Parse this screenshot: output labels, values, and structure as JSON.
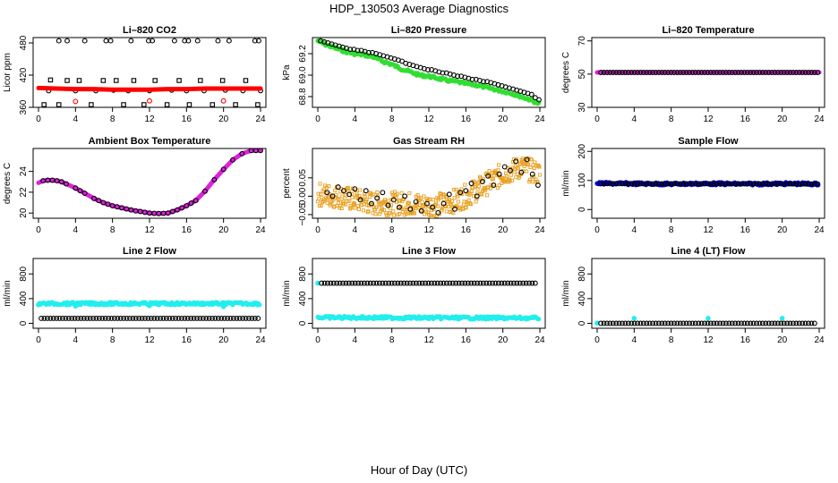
{
  "figure": {
    "title": "HDP_130503  Average Diagnostics",
    "xlabel": "Hour of Day (UTC)"
  },
  "chart_data": [
    {
      "type": "scatter",
      "title": "Li–820 CO2",
      "ylabel": "Licor ppm",
      "xlim": [
        0,
        24
      ],
      "ylim": [
        360,
        490
      ],
      "xticks": [
        "0",
        "4",
        "8",
        "12",
        "16",
        "20",
        "24"
      ],
      "yticks": [
        {
          "v": 360,
          "t": "360"
        },
        {
          "v": 420,
          "t": "420"
        },
        {
          "v": 480,
          "t": "480"
        }
      ],
      "series": [
        {
          "kind": "points-open-square",
          "color": "#000000",
          "x": [
            0.6,
            1.3,
            2.2,
            3.1,
            4.4,
            5.7,
            7.0,
            8.4,
            9.2,
            10.3,
            11.4,
            12.6,
            13.9,
            15.2,
            16.3,
            17.5,
            18.8,
            19.9,
            21.3,
            22.4,
            23.7
          ],
          "y": [
            365,
            411,
            365,
            410,
            410,
            365,
            410,
            410,
            365,
            410,
            365,
            410,
            365,
            410,
            365,
            410,
            365,
            410,
            365,
            410,
            365
          ]
        },
        {
          "kind": "points-open-circle",
          "color": "#000000",
          "x": [
            2.2,
            3.1,
            5.0,
            7.3,
            7.8,
            10.0,
            11.9,
            12.3,
            14.7,
            15.8,
            16.2,
            17.2,
            19.4,
            20.6,
            23.4,
            23.8
          ],
          "y": [
            484,
            484,
            484,
            484,
            484,
            484,
            484,
            484,
            484,
            484,
            484,
            484,
            484,
            484,
            484,
            484
          ]
        },
        {
          "kind": "points-open-circle",
          "color": "#000000",
          "x": [
            1.1,
            4.0,
            6.2,
            8.1,
            9.7,
            12.0,
            14.4,
            16.0,
            17.9,
            20.2,
            22.1,
            24.0
          ],
          "y": [
            391,
            391,
            391,
            392,
            391,
            391,
            392,
            391,
            391,
            392,
            391,
            391
          ]
        },
        {
          "kind": "line-thick",
          "color": "#ff0000",
          "x": [
            0,
            2,
            4,
            6,
            8,
            10,
            12,
            14,
            16,
            18,
            20,
            22,
            24
          ],
          "y": [
            396,
            395,
            394,
            394,
            393,
            393,
            393,
            394,
            394,
            395,
            395,
            395,
            395
          ]
        },
        {
          "kind": "points-open-circle",
          "color": "#ff0000",
          "x": [
            4.0,
            12.0,
            20.0
          ],
          "y": [
            371,
            372,
            372
          ]
        }
      ]
    },
    {
      "type": "scatter",
      "title": "Li–820 Pressure",
      "ylabel": "kPa",
      "xlim": [
        0,
        24
      ],
      "ylim": [
        68.7,
        69.35
      ],
      "xticks": [
        "0",
        "4",
        "8",
        "12",
        "16",
        "20",
        "24"
      ],
      "yticks": [
        {
          "v": 68.8,
          "t": "68.8"
        },
        {
          "v": 69.0,
          "t": "69.0"
        },
        {
          "v": 69.2,
          "t": "69.2"
        }
      ],
      "series": [
        {
          "kind": "band",
          "color": "#33dd33",
          "x": [
            0,
            1,
            2,
            3,
            4,
            5,
            6,
            7,
            8,
            9,
            10,
            11,
            12,
            13,
            14,
            15,
            16,
            17,
            18,
            19,
            20,
            21,
            22,
            23,
            24
          ],
          "y": [
            69.32,
            69.28,
            69.25,
            69.22,
            69.2,
            69.19,
            69.17,
            69.13,
            69.1,
            69.06,
            69.03,
            69.0,
            68.99,
            68.97,
            68.95,
            68.94,
            68.92,
            68.91,
            68.89,
            68.87,
            68.85,
            68.83,
            68.8,
            68.77,
            68.73
          ]
        },
        {
          "kind": "points-open-circle",
          "color": "#000000",
          "x": [
            0.3,
            0.7,
            1.1,
            1.5,
            1.9,
            2.3,
            2.7,
            3.1,
            3.5,
            3.9,
            4.3,
            4.7,
            5.1,
            5.5,
            5.9,
            6.3,
            6.7,
            7.1,
            7.5,
            7.9,
            8.3,
            8.7,
            9.1,
            9.5,
            9.9,
            10.3,
            10.7,
            11.1,
            11.5,
            11.9,
            12.3,
            12.7,
            13.1,
            13.5,
            13.9,
            14.3,
            14.7,
            15.1,
            15.5,
            15.9,
            16.3,
            16.7,
            17.1,
            17.5,
            17.9,
            18.3,
            18.7,
            19.1,
            19.5,
            19.9,
            20.3,
            20.7,
            21.1,
            21.5,
            21.9,
            22.3,
            22.7,
            23.1,
            23.5,
            23.9
          ],
          "y": [
            69.32,
            69.31,
            69.3,
            69.29,
            69.28,
            69.27,
            69.26,
            69.25,
            69.24,
            69.24,
            69.23,
            69.23,
            69.22,
            69.21,
            69.21,
            69.2,
            69.19,
            69.18,
            69.17,
            69.16,
            69.15,
            69.14,
            69.13,
            69.11,
            69.1,
            69.09,
            69.08,
            69.07,
            69.06,
            69.05,
            69.05,
            69.04,
            69.03,
            69.02,
            69.02,
            69.01,
            69.0,
            68.99,
            68.99,
            68.98,
            68.97,
            68.96,
            68.96,
            68.95,
            68.94,
            68.94,
            68.93,
            68.92,
            68.91,
            68.9,
            68.89,
            68.88,
            68.87,
            68.86,
            68.85,
            68.84,
            68.83,
            68.82,
            68.79,
            68.77
          ]
        }
      ]
    },
    {
      "type": "scatter",
      "title": "Li–820 Temperature",
      "ylabel": "degrees C",
      "xlim": [
        0,
        24
      ],
      "ylim": [
        30,
        72
      ],
      "xticks": [
        "0",
        "4",
        "8",
        "12",
        "16",
        "20",
        "24"
      ],
      "yticks": [
        {
          "v": 30,
          "t": "30"
        },
        {
          "v": 50,
          "t": "50"
        },
        {
          "v": 70,
          "t": "70"
        }
      ],
      "series": [
        {
          "kind": "line-thick",
          "color": "#dd22dd",
          "x": [
            0,
            24
          ],
          "y": [
            51,
            51
          ]
        },
        {
          "kind": "points-open-circle-dense",
          "color": "#000000",
          "x": [
            0.4,
            24
          ],
          "y": [
            51,
            51
          ]
        }
      ]
    },
    {
      "type": "line",
      "title": "Ambient Box Temperature",
      "ylabel": "degrees C",
      "xlim": [
        0,
        24
      ],
      "ylim": [
        19.5,
        26.2
      ],
      "xticks": [
        "0",
        "4",
        "8",
        "12",
        "16",
        "20",
        "24"
      ],
      "yticks": [
        {
          "v": 20,
          "t": "20"
        },
        {
          "v": 22,
          "t": "22"
        },
        {
          "v": 24,
          "t": "24"
        }
      ],
      "series": [
        {
          "kind": "line-thick",
          "color": "#dd22dd",
          "x": [
            0,
            0.5,
            1,
            1.5,
            2,
            2.5,
            3,
            3.5,
            4,
            5,
            6,
            7,
            8,
            9,
            10,
            11,
            12,
            13,
            14,
            15,
            16,
            17,
            18,
            19,
            20,
            21,
            22,
            23,
            24
          ],
          "y": [
            22.9,
            23.1,
            23.15,
            23.15,
            23.1,
            23.0,
            22.8,
            22.6,
            22.4,
            21.9,
            21.4,
            21.0,
            20.7,
            20.5,
            20.3,
            20.15,
            20.0,
            19.95,
            20.0,
            20.3,
            20.7,
            21.2,
            22.1,
            23.2,
            24.2,
            25.1,
            25.7,
            26.0,
            26.0
          ]
        },
        {
          "kind": "points-open-circle",
          "color": "#000000",
          "x": [
            0.5,
            1,
            1.5,
            2,
            2.5,
            3,
            4,
            4.5,
            5,
            6,
            6.5,
            7,
            7.5,
            8,
            8.5,
            9,
            9.5,
            10,
            10.5,
            11,
            11.5,
            12,
            12.5,
            13,
            13.5,
            14,
            14.5,
            15,
            15.5,
            16,
            16.5,
            17,
            18,
            19,
            20,
            21,
            22,
            23,
            23.5,
            24
          ],
          "y": [
            23.1,
            23.15,
            23.15,
            23.1,
            23.0,
            22.8,
            22.4,
            22.15,
            21.9,
            21.4,
            21.2,
            21.0,
            20.85,
            20.7,
            20.6,
            20.5,
            20.4,
            20.3,
            20.2,
            20.15,
            20.07,
            20.0,
            19.97,
            19.95,
            19.97,
            20.0,
            20.15,
            20.3,
            20.5,
            20.7,
            20.95,
            21.2,
            22.1,
            23.2,
            24.2,
            25.1,
            25.7,
            26.0,
            26.0,
            26.0
          ]
        }
      ]
    },
    {
      "type": "scatter",
      "title": "Gas Stream RH",
      "ylabel": "percent",
      "xlim": [
        0,
        24
      ],
      "ylim": [
        -0.06,
        0.13
      ],
      "xticks": [
        "0",
        "4",
        "8",
        "12",
        "16",
        "20",
        "24"
      ],
      "yticks": [
        {
          "v": -0.05,
          "t": "−0.05"
        },
        {
          "v": 0.0,
          "t": "0.00"
        },
        {
          "v": 0.05,
          "t": "0.05"
        }
      ],
      "series": [
        {
          "kind": "noise-band",
          "color": "#e8a020",
          "x": [
            0,
            2,
            4,
            6,
            8,
            10,
            12,
            14,
            16,
            18,
            20,
            22,
            24
          ],
          "y": [
            0.005,
            0.0,
            -0.01,
            -0.02,
            -0.02,
            -0.02,
            -0.025,
            -0.02,
            0.0,
            0.03,
            0.06,
            0.08,
            0.06
          ],
          "spread": 0.04
        },
        {
          "kind": "points-open-circle",
          "color": "#000000",
          "x": [
            1.0,
            1.6,
            2.2,
            2.8,
            3.4,
            4.0,
            4.6,
            5.2,
            5.8,
            6.4,
            7.0,
            7.6,
            8.2,
            8.8,
            9.4,
            10.0,
            10.6,
            11.2,
            11.8,
            12.4,
            13.0,
            13.6,
            14.2,
            14.8,
            15.4,
            16.0,
            16.6,
            17.2,
            17.8,
            18.4,
            19.0,
            19.6,
            20.2,
            20.8,
            21.4,
            22.0,
            22.6,
            23.2,
            23.8
          ],
          "y": [
            0.01,
            0.0,
            0.025,
            0.015,
            0.005,
            0.02,
            -0.01,
            0.015,
            -0.02,
            -0.005,
            0.01,
            -0.025,
            -0.01,
            -0.03,
            0.0,
            -0.035,
            -0.015,
            -0.04,
            -0.02,
            -0.03,
            -0.045,
            -0.02,
            0.005,
            -0.035,
            0.01,
            0.015,
            0.035,
            0.0,
            0.04,
            0.055,
            0.03,
            0.06,
            0.08,
            0.07,
            0.095,
            0.065,
            0.1,
            0.06,
            0.03
          ]
        }
      ]
    },
    {
      "type": "scatter",
      "title": "Sample Flow",
      "ylabel": "ml/min",
      "xlim": [
        0,
        24
      ],
      "ylim": [
        -30,
        210
      ],
      "xticks": [
        "0",
        "4",
        "8",
        "12",
        "16",
        "20",
        "24"
      ],
      "yticks": [
        {
          "v": 0,
          "t": "0"
        },
        {
          "v": 100,
          "t": "100"
        },
        {
          "v": 200,
          "t": "200"
        }
      ],
      "series": [
        {
          "kind": "band",
          "color": "#0000dd",
          "x": [
            0,
            4,
            8,
            12,
            16,
            20,
            24
          ],
          "y": [
            90,
            89,
            88,
            89,
            88,
            89,
            88
          ]
        },
        {
          "kind": "points-open-circle-dense",
          "color": "#000000",
          "x": [
            0.4,
            24
          ],
          "y": [
            89,
            88
          ]
        }
      ]
    },
    {
      "type": "scatter",
      "title": "Line 2 Flow",
      "ylabel": "ml/min",
      "xlim": [
        0,
        24
      ],
      "ylim": [
        -80,
        1050
      ],
      "xticks": [
        "0",
        "4",
        "8",
        "12",
        "16",
        "20",
        "24"
      ],
      "yticks": [
        {
          "v": 0,
          "t": "0"
        },
        {
          "v": 400,
          "t": "400"
        },
        {
          "v": 800,
          "t": "800"
        }
      ],
      "series": [
        {
          "kind": "band",
          "color": "#22eeee",
          "x": [
            0,
            24
          ],
          "y": [
            320,
            320
          ]
        },
        {
          "kind": "points-filled-sparse",
          "color": "#22eeee",
          "x": [
            0.0,
            4.0,
            12.0,
            20.0
          ],
          "y": [
            300,
            280,
            285,
            270
          ]
        },
        {
          "kind": "points-open-circle-dense",
          "color": "#000000",
          "x": [
            0.3,
            23.8
          ],
          "y": [
            80,
            80
          ]
        }
      ]
    },
    {
      "type": "scatter",
      "title": "Line 3 Flow",
      "ylabel": "ml/min",
      "xlim": [
        0,
        24
      ],
      "ylim": [
        -80,
        1050
      ],
      "xticks": [
        "0",
        "4",
        "8",
        "12",
        "16",
        "20",
        "24"
      ],
      "yticks": [
        {
          "v": 0,
          "t": "0"
        },
        {
          "v": 400,
          "t": "400"
        },
        {
          "v": 800,
          "t": "800"
        }
      ],
      "series": [
        {
          "kind": "points-filled-sparse",
          "color": "#22eeee",
          "x": [
            0.0
          ],
          "y": [
            650
          ]
        },
        {
          "kind": "points-open-circle-dense",
          "color": "#000000",
          "x": [
            0.4,
            23.8
          ],
          "y": [
            650,
            650
          ]
        },
        {
          "kind": "band",
          "color": "#22eeee",
          "x": [
            0,
            24
          ],
          "y": [
            95,
            85
          ]
        }
      ]
    },
    {
      "type": "scatter",
      "title": "Line 4 (LT) Flow",
      "ylabel": "ml/min",
      "xlim": [
        0,
        24
      ],
      "ylim": [
        -80,
        1050
      ],
      "xticks": [
        "0",
        "4",
        "8",
        "12",
        "16",
        "20",
        "24"
      ],
      "yticks": [
        {
          "v": 0,
          "t": "0"
        },
        {
          "v": 400,
          "t": "400"
        },
        {
          "v": 800,
          "t": "800"
        }
      ],
      "series": [
        {
          "kind": "points-filled-sparse",
          "color": "#22eeee",
          "x": [
            0.0,
            4.0,
            12.0,
            20.0
          ],
          "y": [
            5,
            80,
            80,
            80
          ]
        },
        {
          "kind": "points-open-circle-dense",
          "color": "#000000",
          "x": [
            0.4,
            23.8
          ],
          "y": [
            0,
            0
          ]
        }
      ]
    }
  ]
}
